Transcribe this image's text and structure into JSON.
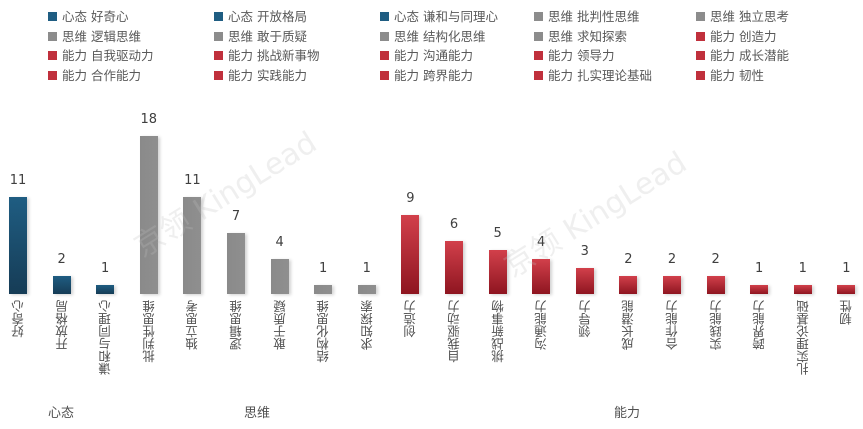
{
  "chart_data": {
    "type": "bar",
    "title": "",
    "xlabel": "",
    "ylabel": "",
    "ylim": [
      0,
      18
    ],
    "grid": false,
    "legend_position": "top",
    "groups": [
      "心态",
      "思维",
      "能力"
    ],
    "categories": [
      "好奇心",
      "开放格局",
      "谦和与同理心",
      "批判性思维",
      "独立思考",
      "逻辑思维",
      "敢于质疑",
      "结构化思维",
      "求知探索",
      "创造力",
      "自我驱动力",
      "挑战新事物",
      "沟通能力",
      "领导力",
      "成长潜能",
      "合作能力",
      "实践能力",
      "跨界能力",
      "扎实理论基础",
      "韧性"
    ],
    "category_groups": [
      "心态",
      "心态",
      "心态",
      "思维",
      "思维",
      "思维",
      "思维",
      "思维",
      "思维",
      "能力",
      "能力",
      "能力",
      "能力",
      "能力",
      "能力",
      "能力",
      "能力",
      "能力",
      "能力",
      "能力"
    ],
    "values": [
      11,
      2,
      1,
      18,
      11,
      7,
      4,
      1,
      1,
      9,
      6,
      5,
      4,
      3,
      2,
      2,
      2,
      1,
      1,
      1
    ],
    "series": [
      {
        "name": "心态 好奇心",
        "values": [
          11
        ]
      },
      {
        "name": "心态 开放格局",
        "values": [
          2
        ]
      },
      {
        "name": "心态 谦和与同理心",
        "values": [
          1
        ]
      },
      {
        "name": "思维 批判性思维",
        "values": [
          18
        ]
      },
      {
        "name": "思维 独立思考",
        "values": [
          11
        ]
      },
      {
        "name": "思维 逻辑思维",
        "values": [
          7
        ]
      },
      {
        "name": "思维 敢于质疑",
        "values": [
          4
        ]
      },
      {
        "name": "思维 结构化思维",
        "values": [
          1
        ]
      },
      {
        "name": "思维 求知探索",
        "values": [
          1
        ]
      },
      {
        "name": "能力 创造力",
        "values": [
          9
        ]
      },
      {
        "name": "能力 自我驱动力",
        "values": [
          6
        ]
      },
      {
        "name": "能力 挑战新事物",
        "values": [
          5
        ]
      },
      {
        "name": "能力 沟通能力",
        "values": [
          4
        ]
      },
      {
        "name": "能力 领导力",
        "values": [
          3
        ]
      },
      {
        "name": "能力 成长潜能",
        "values": [
          2
        ]
      },
      {
        "name": "能力 合作能力",
        "values": [
          2
        ]
      },
      {
        "name": "能力 实践能力",
        "values": [
          2
        ]
      },
      {
        "name": "能力 跨界能力",
        "values": [
          1
        ]
      },
      {
        "name": "能力 扎实理论基础",
        "values": [
          1
        ]
      },
      {
        "name": "能力 韧性",
        "values": [
          1
        ]
      }
    ],
    "colors": {
      "心态": "#1f5d82",
      "思维": "#8c8c8c",
      "能力": "#c0303c"
    }
  },
  "legend": [
    {
      "label": "心态 好奇心",
      "group": "mind"
    },
    {
      "label": "心态 开放格局",
      "group": "mind"
    },
    {
      "label": "心态 谦和与同理心",
      "group": "mind"
    },
    {
      "label": "思维 批判性思维",
      "group": "think"
    },
    {
      "label": "思维 独立思考",
      "group": "think"
    },
    {
      "label": "思维 逻辑思维",
      "group": "think"
    },
    {
      "label": "思维 敢于质疑",
      "group": "think"
    },
    {
      "label": "思维 结构化思维",
      "group": "think"
    },
    {
      "label": "思维 求知探索",
      "group": "think"
    },
    {
      "label": "能力 创造力",
      "group": "ability"
    },
    {
      "label": "能力 自我驱动力",
      "group": "ability"
    },
    {
      "label": "能力 挑战新事物",
      "group": "ability"
    },
    {
      "label": "能力 沟通能力",
      "group": "ability"
    },
    {
      "label": "能力 领导力",
      "group": "ability"
    },
    {
      "label": "能力 成长潜能",
      "group": "ability"
    },
    {
      "label": "能力 合作能力",
      "group": "ability"
    },
    {
      "label": "能力 实践能力",
      "group": "ability"
    },
    {
      "label": "能力 跨界能力",
      "group": "ability"
    },
    {
      "label": "能力 扎实理论基础",
      "group": "ability"
    },
    {
      "label": "能力 韧性",
      "group": "ability"
    }
  ],
  "group_labels": {
    "mind": "心态",
    "think": "思维",
    "ability": "能力"
  },
  "watermark": {
    "text": "京领 KingLead"
  }
}
